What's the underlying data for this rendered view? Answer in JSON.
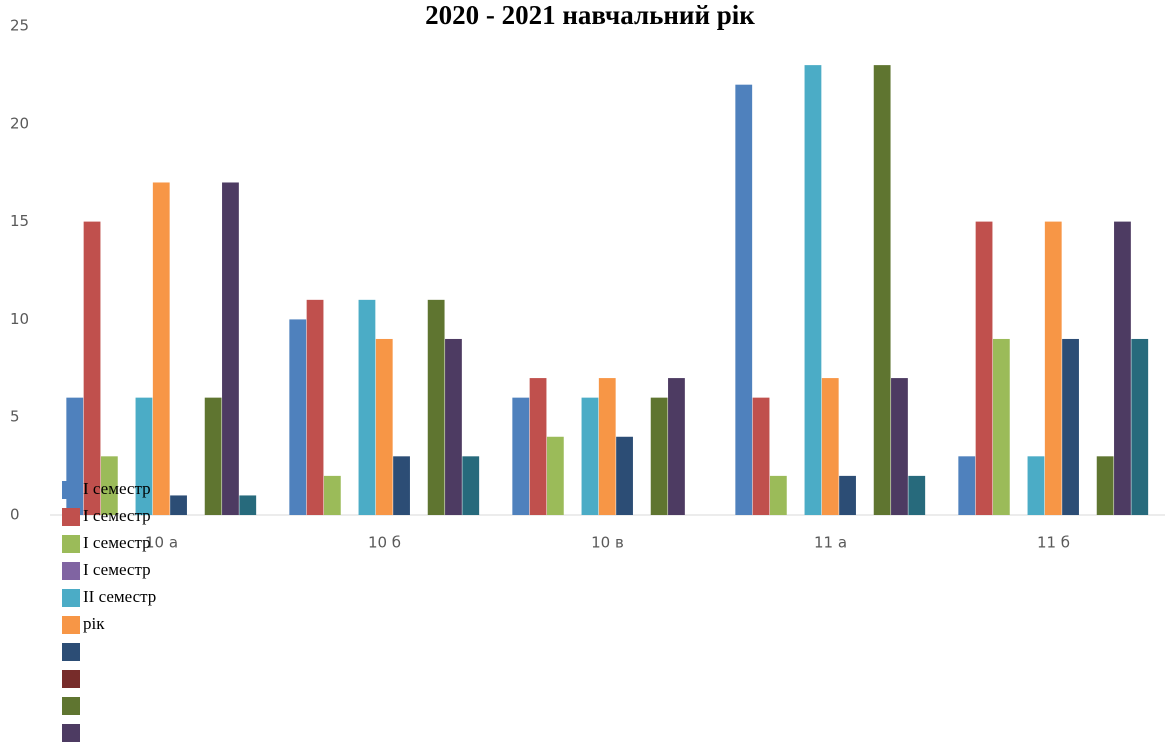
{
  "chart_data": {
    "type": "bar",
    "title": "2020 - 2021 навчальний рік",
    "categories": [
      "10 а",
      "10 б",
      "10 в",
      "11 а",
      "11 б"
    ],
    "ylim": [
      0,
      25
    ],
    "yticks": [
      0,
      5,
      10,
      15,
      20,
      25
    ],
    "series": [
      {
        "name": "І семестр",
        "color": "#4f81bd",
        "values": [
          6,
          10,
          6,
          22,
          3
        ]
      },
      {
        "name": "І семестр",
        "color": "#c0504d",
        "values": [
          15,
          11,
          7,
          6,
          15
        ]
      },
      {
        "name": "І семестр",
        "color": "#9bbb59",
        "values": [
          3,
          2,
          4,
          2,
          9
        ]
      },
      {
        "name": "І семестр",
        "color": "#8064a2",
        "values": [
          0,
          0,
          0,
          0,
          0
        ]
      },
      {
        "name": "ІІ семестр",
        "color": "#4bacc6",
        "values": [
          6,
          11,
          6,
          23,
          3
        ]
      },
      {
        "name": "рік",
        "color": "#f79646",
        "values": [
          17,
          9,
          7,
          7,
          15
        ]
      },
      {
        "color": "#2c4d75",
        "values": [
          1,
          3,
          4,
          2,
          9
        ]
      },
      {
        "color": "#772c2a",
        "values": [
          0,
          0,
          0,
          0,
          0
        ]
      },
      {
        "color": "#5f7530",
        "values": [
          6,
          11,
          6,
          23,
          3
        ]
      },
      {
        "color": "#4d3b62",
        "values": [
          17,
          9,
          7,
          7,
          15
        ]
      },
      {
        "color": "#276a7c",
        "values": [
          1,
          3,
          0,
          2,
          9
        ]
      }
    ]
  }
}
